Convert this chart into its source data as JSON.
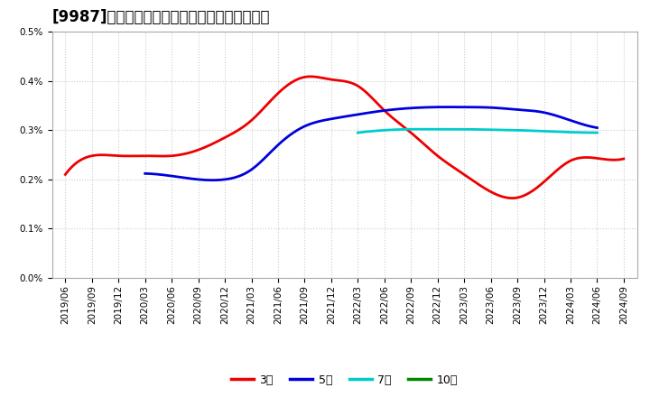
{
  "title": "[9987]　当期純利益マージンの標準偏差の推移",
  "ylim": [
    0.0,
    0.005
  ],
  "yticks": [
    0.0,
    0.001,
    0.002,
    0.003,
    0.004,
    0.005
  ],
  "background_color": "#ffffff",
  "grid_color": "#cccccc",
  "series": {
    "3年": {
      "color": "#ee0000",
      "points": [
        [
          "2019-06",
          0.0021
        ],
        [
          "2019-09",
          0.00248
        ],
        [
          "2019-12",
          0.00248
        ],
        [
          "2020-03",
          0.00248
        ],
        [
          "2020-06",
          0.00248
        ],
        [
          "2020-09",
          0.0026
        ],
        [
          "2020-12",
          0.00285
        ],
        [
          "2021-03",
          0.0032
        ],
        [
          "2021-06",
          0.00375
        ],
        [
          "2021-09",
          0.00408
        ],
        [
          "2021-12",
          0.00403
        ],
        [
          "2022-03",
          0.0039
        ],
        [
          "2022-06",
          0.0034
        ],
        [
          "2022-09",
          0.00295
        ],
        [
          "2022-12",
          0.00248
        ],
        [
          "2023-03",
          0.0021
        ],
        [
          "2023-06",
          0.00175
        ],
        [
          "2023-09",
          0.00163
        ],
        [
          "2023-12",
          0.00195
        ],
        [
          "2024-03",
          0.00238
        ],
        [
          "2024-06",
          0.00243
        ],
        [
          "2024-09",
          0.00242
        ]
      ]
    },
    "5年": {
      "color": "#0000dd",
      "points": [
        [
          "2019-06",
          null
        ],
        [
          "2019-09",
          null
        ],
        [
          "2019-12",
          null
        ],
        [
          "2020-03",
          0.00212
        ],
        [
          "2020-06",
          0.00207
        ],
        [
          "2020-09",
          0.002
        ],
        [
          "2020-12",
          0.002
        ],
        [
          "2021-03",
          0.0022
        ],
        [
          "2021-06",
          0.0027
        ],
        [
          "2021-09",
          0.00308
        ],
        [
          "2021-12",
          0.00323
        ],
        [
          "2022-03",
          0.00332
        ],
        [
          "2022-06",
          0.0034
        ],
        [
          "2022-09",
          0.00345
        ],
        [
          "2022-12",
          0.00347
        ],
        [
          "2023-03",
          0.00347
        ],
        [
          "2023-06",
          0.00346
        ],
        [
          "2023-09",
          0.00342
        ],
        [
          "2023-12",
          0.00336
        ],
        [
          "2024-03",
          0.0032
        ],
        [
          "2024-06",
          0.00305
        ],
        [
          "2024-09",
          null
        ]
      ]
    },
    "7年": {
      "color": "#00cccc",
      "points": [
        [
          "2019-06",
          null
        ],
        [
          "2019-09",
          null
        ],
        [
          "2019-12",
          null
        ],
        [
          "2020-03",
          null
        ],
        [
          "2020-06",
          null
        ],
        [
          "2020-09",
          null
        ],
        [
          "2020-12",
          null
        ],
        [
          "2021-03",
          null
        ],
        [
          "2021-06",
          null
        ],
        [
          "2021-09",
          null
        ],
        [
          "2021-12",
          null
        ],
        [
          "2022-03",
          0.00295
        ],
        [
          "2022-06",
          0.003
        ],
        [
          "2022-09",
          0.00302
        ],
        [
          "2022-12",
          0.00302
        ],
        [
          "2023-03",
          0.00302
        ],
        [
          "2023-06",
          0.00301
        ],
        [
          "2023-09",
          0.003
        ],
        [
          "2023-12",
          0.00298
        ],
        [
          "2024-03",
          0.00296
        ],
        [
          "2024-06",
          0.00295
        ],
        [
          "2024-09",
          null
        ]
      ]
    },
    "10年": {
      "color": "#008800",
      "points": [
        [
          "2019-06",
          null
        ],
        [
          "2019-09",
          null
        ],
        [
          "2019-12",
          null
        ],
        [
          "2020-03",
          null
        ],
        [
          "2020-06",
          null
        ],
        [
          "2020-09",
          null
        ],
        [
          "2020-12",
          null
        ],
        [
          "2021-03",
          null
        ],
        [
          "2021-06",
          null
        ],
        [
          "2021-09",
          null
        ],
        [
          "2021-12",
          null
        ],
        [
          "2022-03",
          null
        ],
        [
          "2022-06",
          null
        ],
        [
          "2022-09",
          null
        ],
        [
          "2022-12",
          null
        ],
        [
          "2023-03",
          null
        ],
        [
          "2023-06",
          null
        ],
        [
          "2023-09",
          null
        ],
        [
          "2023-12",
          null
        ],
        [
          "2024-03",
          null
        ],
        [
          "2024-06",
          null
        ],
        [
          "2024-09",
          null
        ]
      ]
    }
  },
  "x_tick_labels": [
    "2019/06",
    "2019/09",
    "2019/12",
    "2020/03",
    "2020/06",
    "2020/09",
    "2020/12",
    "2021/03",
    "2021/06",
    "2021/09",
    "2021/12",
    "2022/03",
    "2022/06",
    "2022/09",
    "2022/12",
    "2023/03",
    "2023/06",
    "2023/09",
    "2023/12",
    "2024/03",
    "2024/06",
    "2024/09"
  ],
  "legend_entries": [
    "3年",
    "5年",
    "7年",
    "10年"
  ],
  "legend_colors": [
    "#ee0000",
    "#0000dd",
    "#00cccc",
    "#008800"
  ],
  "title_fontsize": 12,
  "tick_fontsize": 7.5,
  "legend_fontsize": 9
}
